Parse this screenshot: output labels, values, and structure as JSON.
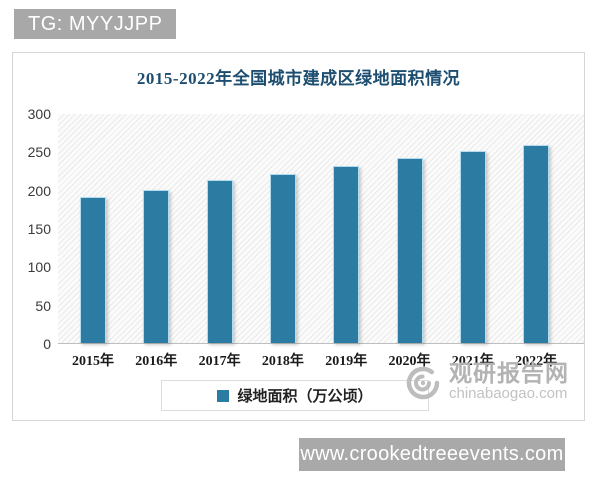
{
  "badge": {
    "text": "TG: MYYJJPP"
  },
  "chart_data": {
    "type": "bar",
    "title": "2015-2022年全国城市建成区绿地面积情况",
    "categories": [
      "2015年",
      "2016年",
      "2017年",
      "2018年",
      "2019年",
      "2020年",
      "2021年",
      "2022年"
    ],
    "values": [
      191,
      200,
      212,
      220,
      231,
      241,
      251,
      258
    ],
    "xlabel": "",
    "ylabel": "",
    "ylim": [
      0,
      300
    ],
    "yticks": [
      0,
      50,
      100,
      150,
      200,
      250,
      300
    ],
    "grid": false,
    "legend": [
      "绿地面积（万公顷）"
    ],
    "legend_position": "bottom"
  },
  "watermark": {
    "site_name": "观研报告网",
    "site_domain": "chinabaogao.com"
  },
  "footer": {
    "url": "www.crookedtreeevents.com"
  },
  "colors": {
    "bar": "#2b7ba2",
    "bar_edge": "#b5dcec",
    "title_text": "#1d4e70",
    "badge_bg": "#a8a8a8",
    "footer_bg": "#a9a9a9",
    "watermark_gray": "#b3b3b3"
  }
}
